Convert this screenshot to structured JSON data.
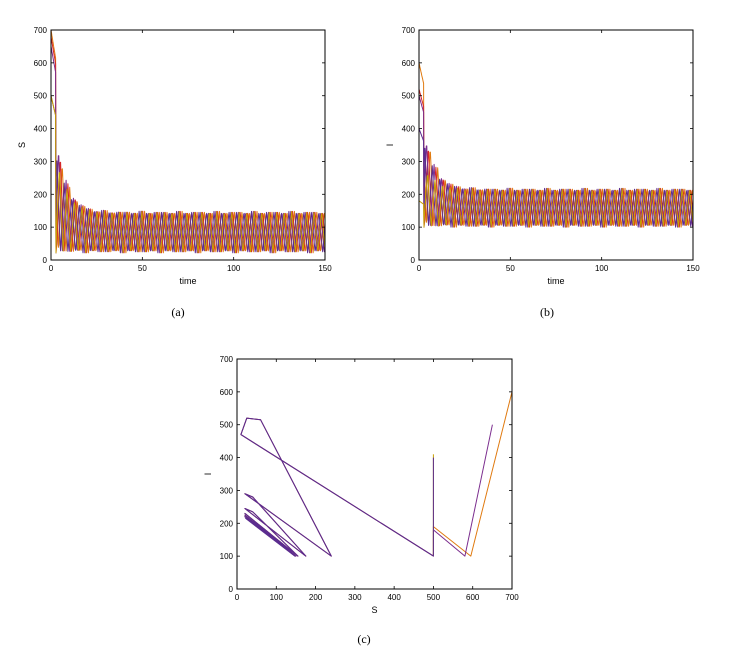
{
  "chart_data": [
    {
      "id": "a",
      "type": "line",
      "caption": "(a)",
      "xlabel": "time",
      "ylabel": "S",
      "xlim": [
        0,
        150
      ],
      "ylim": [
        0,
        700
      ],
      "xticks": [
        0,
        50,
        100,
        150
      ],
      "yticks": [
        0,
        100,
        200,
        300,
        400,
        500,
        600,
        700
      ],
      "grid": false,
      "series": [
        {
          "color": "#e07a10",
          "initial": 700,
          "period": 4.1,
          "phase": 0.0,
          "low": 22,
          "high": 148
        },
        {
          "color": "#d62728",
          "initial": 680,
          "period": 4.1,
          "phase": 1.0,
          "low": 22,
          "high": 148
        },
        {
          "color": "#7b2d8e",
          "initial": 650,
          "period": 4.1,
          "phase": 2.0,
          "low": 22,
          "high": 148
        },
        {
          "color": "#5b2c8f",
          "initial": 500,
          "period": 4.1,
          "phase": 3.0,
          "low": 22,
          "high": 148
        },
        {
          "color": "#c8a000",
          "initial": 500,
          "period": 4.1,
          "phase": 1.5,
          "low": 22,
          "high": 148
        }
      ]
    },
    {
      "id": "b",
      "type": "line",
      "caption": "(b)",
      "xlabel": "time",
      "ylabel": "I",
      "xlim": [
        0,
        150
      ],
      "ylim": [
        0,
        700
      ],
      "xticks": [
        0,
        50,
        100,
        150
      ],
      "yticks": [
        0,
        100,
        200,
        300,
        400,
        500,
        600,
        700
      ],
      "grid": false,
      "series": [
        {
          "color": "#e07a10",
          "initial": 600,
          "period": 4.1,
          "phase": 0.0,
          "low": 100,
          "high": 218
        },
        {
          "color": "#d62728",
          "initial": 520,
          "period": 4.1,
          "phase": 1.0,
          "low": 100,
          "high": 218
        },
        {
          "color": "#7b2d8e",
          "initial": 500,
          "period": 4.1,
          "phase": 2.0,
          "low": 100,
          "high": 218
        },
        {
          "color": "#5b2c8f",
          "initial": 400,
          "period": 4.1,
          "phase": 3.0,
          "low": 100,
          "high": 218
        },
        {
          "color": "#c8a000",
          "initial": 180,
          "period": 4.1,
          "phase": 1.5,
          "low": 100,
          "high": 218
        }
      ]
    },
    {
      "id": "c",
      "type": "line",
      "caption": "(c)",
      "xlabel": "S",
      "ylabel": "I",
      "xlim": [
        0,
        700
      ],
      "ylim": [
        0,
        700
      ],
      "xticks": [
        0,
        100,
        200,
        300,
        400,
        500,
        600,
        700
      ],
      "yticks": [
        0,
        100,
        200,
        300,
        400,
        500,
        600,
        700
      ],
      "grid": false,
      "series": [
        {
          "color": "#e07a10",
          "points": [
            [
              700,
              600
            ],
            [
              595,
              100
            ],
            [
              500,
              190
            ],
            [
              500,
              100
            ],
            [
              10,
              470
            ],
            [
              25,
              520
            ],
            [
              60,
              515
            ],
            [
              240,
              100
            ],
            [
              20,
              290
            ],
            [
              40,
              280
            ],
            [
              175,
              100
            ],
            [
              20,
              245
            ],
            [
              40,
              235
            ],
            [
              155,
              100
            ],
            [
              20,
              230
            ],
            [
              150,
              100
            ],
            [
              20,
              225
            ],
            [
              148,
              100
            ],
            [
              20,
              220
            ],
            [
              148,
              100
            ]
          ]
        },
        {
          "color": "#7b2d8e",
          "points": [
            [
              650,
              500
            ],
            [
              580,
              100
            ],
            [
              500,
              180
            ],
            [
              500,
              100
            ],
            [
              10,
              470
            ],
            [
              25,
              520
            ],
            [
              60,
              515
            ],
            [
              240,
              100
            ],
            [
              20,
              290
            ],
            [
              40,
              280
            ],
            [
              175,
              100
            ],
            [
              20,
              245
            ],
            [
              40,
              235
            ],
            [
              155,
              100
            ],
            [
              20,
              230
            ],
            [
              150,
              100
            ],
            [
              20,
              225
            ],
            [
              148,
              100
            ],
            [
              20,
              220
            ],
            [
              148,
              100
            ]
          ]
        },
        {
          "color": "#c8a000",
          "points": [
            [
              500,
              410
            ],
            [
              500,
              100
            ]
          ]
        },
        {
          "color": "#5b2c8f",
          "points": [
            [
              500,
              400
            ],
            [
              500,
              100
            ],
            [
              10,
              470
            ],
            [
              25,
              520
            ],
            [
              60,
              515
            ],
            [
              240,
              100
            ],
            [
              20,
              290
            ],
            [
              40,
              280
            ],
            [
              175,
              100
            ],
            [
              20,
              245
            ],
            [
              40,
              235
            ],
            [
              155,
              100
            ],
            [
              20,
              230
            ],
            [
              150,
              100
            ],
            [
              20,
              225
            ],
            [
              148,
              100
            ],
            [
              20,
              220
            ],
            [
              148,
              100
            ],
            [
              22,
              215
            ],
            [
              147,
              100
            ]
          ]
        }
      ]
    }
  ]
}
